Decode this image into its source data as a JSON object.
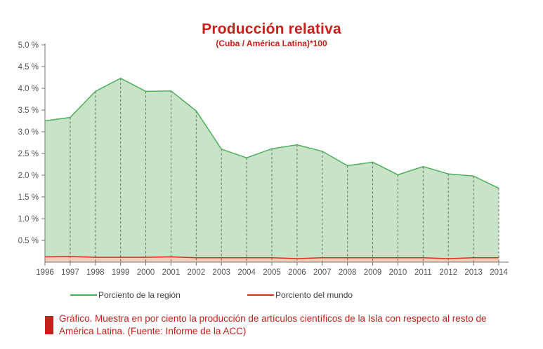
{
  "chart_data": {
    "type": "area",
    "title": "Producción relativa",
    "subtitle": "(Cuba / América Latina)*100",
    "x": [
      "1996",
      "1997",
      "1998",
      "1999",
      "2000",
      "2001",
      "2002",
      "2003",
      "2004",
      "2005",
      "2006",
      "2007",
      "2008",
      "2009",
      "2010",
      "2011",
      "2012",
      "2013",
      "2014"
    ],
    "series": [
      {
        "name": "Porciento de la región",
        "color": "#4caf5c",
        "fill": "#c9e3c9",
        "values": [
          3.25,
          3.33,
          3.93,
          4.23,
          3.93,
          3.94,
          3.48,
          2.6,
          2.4,
          2.61,
          2.7,
          2.55,
          2.22,
          2.3,
          2.01,
          2.2,
          2.03,
          1.98,
          1.7
        ]
      },
      {
        "name": "Porciento del mundo",
        "color": "#d9301e",
        "fill": "#f3cdb8",
        "values": [
          0.12,
          0.13,
          0.11,
          0.11,
          0.11,
          0.12,
          0.1,
          0.1,
          0.1,
          0.1,
          0.08,
          0.1,
          0.1,
          0.1,
          0.1,
          0.1,
          0.08,
          0.1,
          0.1
        ]
      }
    ],
    "yticks": [
      "0.5 %",
      "1.0 %",
      "1.5 %",
      "2.0 %",
      "2.5 %",
      "3.0 %",
      "3.5 %",
      "4.0 %",
      "4.5 %",
      "5.0 %"
    ],
    "ylim": [
      0,
      5.0
    ],
    "grid": "dashed vertical lines at each year",
    "legend_position": "bottom"
  },
  "caption": "Gráfico. Muestra en por ciento la producción de artículos científicos de la Isla con respecto al resto de América Latina. (Fuente: Informe de la ACC)"
}
